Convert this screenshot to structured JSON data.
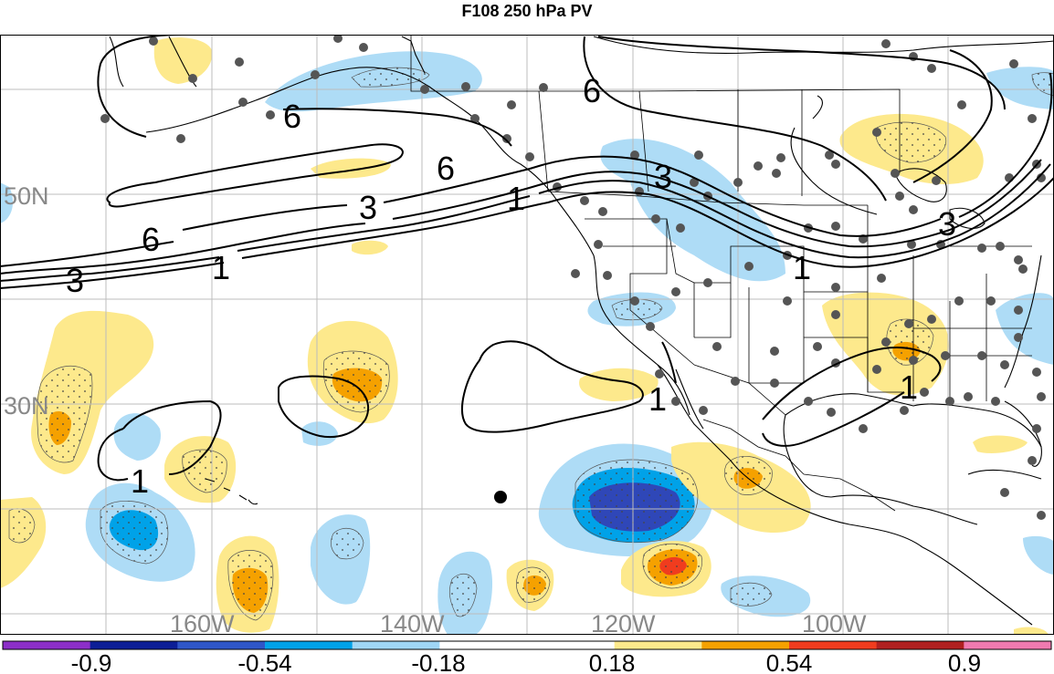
{
  "title": "F108 250 hPa PV",
  "lon_labels": [
    "160W",
    "140W",
    "120W",
    "100W"
  ],
  "lat_labels": [
    "50N",
    "30N"
  ],
  "contour_labels": {
    "one": "1",
    "three": "3",
    "six": "6"
  },
  "colorbar": {
    "labels": [
      "-0.9",
      "-0.54",
      "-0.18",
      "0.18",
      "0.54",
      "0.9"
    ],
    "colors": [
      "#8c2fc8",
      "#0c1e96",
      "#2f56c8",
      "#00a2e8",
      "#9fd6f5",
      "#ffffff",
      "#ffffff",
      "#fde98c",
      "#f5a100",
      "#f03c1e",
      "#b02020",
      "#f07ab0"
    ]
  }
}
